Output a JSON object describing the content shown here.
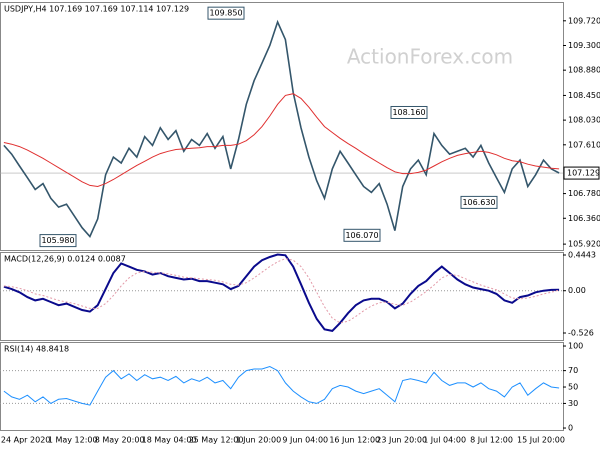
{
  "chart_data": [
    {
      "type": "line",
      "title": "USDJPY,H4  107.169 107.169 107.114 107.129",
      "watermark": "ActionForex.com",
      "categories": [
        "24 Apr 2020",
        null,
        null,
        null,
        null,
        null,
        "1 May 12:00",
        null,
        null,
        null,
        null,
        null,
        "8 May 20:00",
        null,
        null,
        null,
        null,
        null,
        "18 May 04:00",
        null,
        null,
        null,
        null,
        null,
        "25 May 12:00",
        null,
        null,
        null,
        null,
        null,
        "1 Jun 20:00",
        null,
        null,
        null,
        null,
        null,
        "9 Jun 04:00",
        null,
        null,
        null,
        null,
        null,
        "16 Jun 12:00",
        null,
        null,
        null,
        null,
        null,
        "23 Jun 20:00",
        null,
        null,
        null,
        null,
        null,
        "1 Jul 04:00",
        null,
        null,
        null,
        null,
        null,
        "8 Jul 12:00",
        null,
        null,
        null,
        null,
        null,
        "15 Jul 20:00",
        null,
        null,
        null,
        null,
        null
      ],
      "series": [
        {
          "color": "#34566b",
          "values": [
            107.6,
            107.45,
            107.25,
            107.05,
            106.85,
            106.95,
            106.7,
            106.55,
            106.6,
            106.4,
            106.2,
            106.05,
            106.35,
            107.1,
            107.4,
            107.3,
            107.55,
            107.4,
            107.75,
            107.6,
            107.9,
            107.7,
            107.85,
            107.5,
            107.7,
            107.6,
            107.8,
            107.55,
            107.75,
            107.2,
            107.7,
            108.3,
            108.7,
            109.0,
            109.3,
            109.7,
            109.4,
            108.5,
            107.9,
            107.4,
            107.0,
            106.7,
            107.2,
            107.5,
            107.3,
            107.1,
            106.9,
            106.8,
            106.95,
            106.6,
            106.15,
            106.9,
            107.2,
            107.35,
            107.1,
            107.8,
            107.6,
            107.45,
            107.5,
            107.55,
            107.4,
            107.6,
            107.3,
            107.05,
            106.8,
            107.2,
            107.35,
            106.9,
            107.1,
            107.35,
            107.2,
            107.13
          ]
        },
        {
          "color": "#e03030",
          "values": [
            107.65,
            107.62,
            107.58,
            107.52,
            107.45,
            107.38,
            107.3,
            107.22,
            107.14,
            107.06,
            106.98,
            106.92,
            106.9,
            106.95,
            107.02,
            107.1,
            107.18,
            107.26,
            107.33,
            107.4,
            107.46,
            107.5,
            107.53,
            107.54,
            107.55,
            107.56,
            107.58,
            107.58,
            107.6,
            107.6,
            107.62,
            107.68,
            107.78,
            107.92,
            108.1,
            108.3,
            108.45,
            108.48,
            108.4,
            108.25,
            108.08,
            107.92,
            107.82,
            107.72,
            107.63,
            107.55,
            107.46,
            107.38,
            107.3,
            107.22,
            107.15,
            107.12,
            107.12,
            107.14,
            107.18,
            107.25,
            107.32,
            107.38,
            107.43,
            107.46,
            107.48,
            107.5,
            107.48,
            107.44,
            107.38,
            107.34,
            107.32,
            107.28,
            107.25,
            107.23,
            107.21,
            107.2
          ]
        }
      ],
      "ylim": [
        105.82,
        110.04
      ],
      "yticks": [
        {
          "value": 109.72,
          "label": "109.720"
        },
        {
          "value": 109.3,
          "label": "109.300"
        },
        {
          "value": 108.88,
          "label": "108.880"
        },
        {
          "value": 108.45,
          "label": "108.450"
        },
        {
          "value": 108.03,
          "label": "108.030"
        },
        {
          "value": 107.61,
          "label": "107.610"
        },
        {
          "value": 106.78,
          "label": "106.780"
        },
        {
          "value": 106.36,
          "label": "106.360"
        },
        {
          "value": 105.92,
          "label": "105.920"
        }
      ],
      "current": {
        "value": 107.129,
        "label": "107.129"
      },
      "annotations": [
        {
          "value": 109.85,
          "label": "109.850"
        },
        {
          "value": 108.16,
          "label": "108.160"
        },
        {
          "value": 106.63,
          "label": "106.630"
        },
        {
          "value": 106.07,
          "label": "106.070"
        },
        {
          "value": 105.98,
          "label": "105.980"
        }
      ]
    },
    {
      "type": "line",
      "title": "MACD(12,26,9) 0.0124 0.0087",
      "series": [
        {
          "color": "#0a0a8c",
          "values": [
            0.05,
            0.02,
            -0.02,
            -0.08,
            -0.12,
            -0.1,
            -0.14,
            -0.18,
            -0.16,
            -0.2,
            -0.24,
            -0.26,
            -0.18,
            0.02,
            0.22,
            0.34,
            0.3,
            0.26,
            0.24,
            0.2,
            0.22,
            0.18,
            0.16,
            0.14,
            0.15,
            0.12,
            0.12,
            0.1,
            0.08,
            0.02,
            0.06,
            0.18,
            0.3,
            0.38,
            0.42,
            0.45,
            0.44,
            0.3,
            0.08,
            -0.15,
            -0.35,
            -0.48,
            -0.5,
            -0.4,
            -0.28,
            -0.18,
            -0.12,
            -0.1,
            -0.1,
            -0.14,
            -0.22,
            -0.16,
            -0.04,
            0.06,
            0.12,
            0.22,
            0.3,
            0.22,
            0.14,
            0.08,
            0.04,
            0.02,
            0.0,
            -0.04,
            -0.12,
            -0.15,
            -0.08,
            -0.06,
            -0.02,
            0.0,
            0.01,
            0.0124
          ]
        },
        {
          "color": "#e39aa8",
          "dash": true,
          "values": [
            0.06,
            0.05,
            0.03,
            0.0,
            -0.04,
            -0.06,
            -0.09,
            -0.12,
            -0.14,
            -0.16,
            -0.19,
            -0.22,
            -0.22,
            -0.16,
            -0.06,
            0.06,
            0.16,
            0.22,
            0.24,
            0.23,
            0.22,
            0.21,
            0.19,
            0.17,
            0.16,
            0.15,
            0.14,
            0.13,
            0.11,
            0.08,
            0.07,
            0.1,
            0.16,
            0.23,
            0.3,
            0.36,
            0.4,
            0.38,
            0.3,
            0.16,
            -0.02,
            -0.2,
            -0.34,
            -0.4,
            -0.38,
            -0.32,
            -0.25,
            -0.19,
            -0.15,
            -0.14,
            -0.17,
            -0.18,
            -0.14,
            -0.08,
            -0.01,
            0.07,
            0.16,
            0.2,
            0.19,
            0.15,
            0.11,
            0.07,
            0.04,
            0.01,
            -0.04,
            -0.09,
            -0.1,
            -0.09,
            -0.07,
            -0.04,
            -0.02,
            0.0087
          ]
        }
      ],
      "ylim": [
        -0.613,
        0.4816
      ],
      "yticks": [
        0.4443,
        {
          "value": 0,
          "label": "0.00"
        },
        -0.526
      ],
      "levels": [
        0
      ]
    },
    {
      "type": "line",
      "title": "RSI(14) 48.8418",
      "series": [
        {
          "color": "#1e90ff",
          "values": [
            45,
            38,
            35,
            40,
            32,
            38,
            30,
            35,
            36,
            33,
            30,
            28,
            45,
            62,
            70,
            60,
            66,
            58,
            65,
            60,
            62,
            58,
            63,
            55,
            60,
            57,
            62,
            55,
            58,
            48,
            62,
            70,
            72,
            72,
            75,
            70,
            55,
            45,
            38,
            32,
            30,
            35,
            48,
            52,
            50,
            45,
            42,
            45,
            48,
            40,
            32,
            58,
            60,
            58,
            55,
            68,
            58,
            52,
            55,
            55,
            50,
            55,
            48,
            45,
            38,
            50,
            55,
            40,
            48,
            55,
            50,
            48.8418
          ]
        }
      ],
      "ylim": [
        -2.4,
        104.9
      ],
      "yticks": [
        100,
        70,
        50,
        30,
        0
      ],
      "levels": [
        70,
        30
      ]
    }
  ]
}
